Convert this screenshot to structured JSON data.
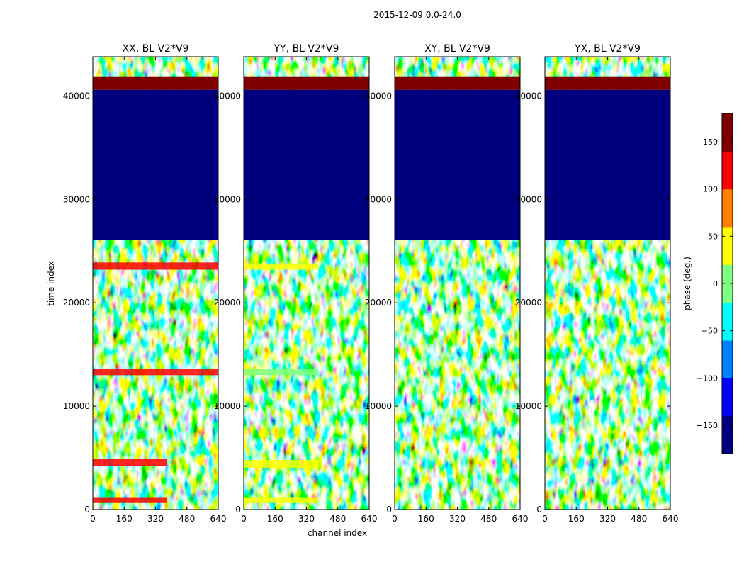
{
  "figure": {
    "suptitle": "2015-12-09 0.0-24.0",
    "colorbar_footer": "......"
  },
  "chart_data": {
    "type": "heatmap",
    "colormap": "jet",
    "colormap_stops": [
      "#00007f",
      "#0000ff",
      "#007fff",
      "#00ffff",
      "#7fff7f",
      "#ffff00",
      "#ff7f00",
      "#ff0000",
      "#7f0000"
    ],
    "xlabel": "channel index",
    "ylabel": "time index",
    "xlim": [
      0,
      640
    ],
    "ylim": [
      0,
      43800
    ],
    "x_ticks": [
      0,
      160,
      320,
      480,
      640
    ],
    "y_ticks": [
      0,
      10000,
      20000,
      30000,
      40000
    ],
    "colorbar": {
      "label": "phase (deg.)",
      "range": [
        -180,
        180
      ],
      "ticks": [
        150,
        100,
        50,
        0,
        -50,
        -100,
        -150
      ],
      "tick_labels": [
        "150",
        "100",
        "50",
        "0",
        "−50",
        "−100",
        "−150"
      ]
    },
    "panels": [
      {
        "title": "XX, BL V2*V9"
      },
      {
        "title": "YY, BL V2*V9"
      },
      {
        "title": "XY, BL V2*V9"
      },
      {
        "title": "YX, BL V2*V9"
      }
    ],
    "constant_regions": [
      {
        "y_range": [
          26100,
          40600
        ],
        "phase_deg": -180
      },
      {
        "y_range": [
          40600,
          41900
        ],
        "phase_deg": 180
      }
    ],
    "bright_bands": [
      {
        "panel": 0,
        "y_range": [
          4200,
          4900
        ],
        "x_range": [
          0,
          380
        ],
        "phase_deg": 120
      },
      {
        "panel": 0,
        "y_range": [
          13000,
          13600
        ],
        "x_range": [
          0,
          640
        ],
        "phase_deg": 115
      },
      {
        "panel": 0,
        "y_range": [
          23200,
          23900
        ],
        "x_range": [
          0,
          640
        ],
        "phase_deg": 125
      },
      {
        "panel": 0,
        "y_range": [
          700,
          1200
        ],
        "x_range": [
          0,
          380
        ],
        "phase_deg": 130
      },
      {
        "panel": 1,
        "y_range": [
          4000,
          4800
        ],
        "x_range": [
          0,
          380
        ],
        "phase_deg": 60
      },
      {
        "panel": 1,
        "y_range": [
          13000,
          13600
        ],
        "x_range": [
          0,
          380
        ],
        "phase_deg": 20
      },
      {
        "panel": 1,
        "y_range": [
          23200,
          23800
        ],
        "x_range": [
          0,
          380
        ],
        "phase_deg": 60
      },
      {
        "panel": 1,
        "y_range": [
          700,
          1200
        ],
        "x_range": [
          0,
          380
        ],
        "phase_deg": 60
      }
    ]
  }
}
